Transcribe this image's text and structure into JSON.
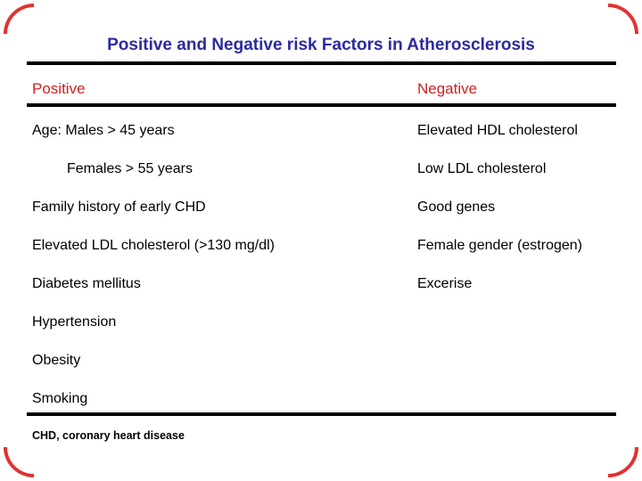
{
  "slide": {
    "title": "Positive and Negative risk Factors in Atherosclerosis",
    "columns": {
      "positive": {
        "header": "Positive",
        "items": [
          "Age: Males > 45 years",
          "Females > 55 years",
          "Family history of early CHD",
          "Elevated LDL cholesterol (>130 mg/dl)",
          "Diabetes mellitus",
          "Hypertension",
          "Obesity",
          "Smoking"
        ]
      },
      "negative": {
        "header": "Negative",
        "items": [
          "Elevated HDL cholesterol",
          "Low LDL cholesterol",
          "Good genes",
          "Female gender (estrogen)",
          "Excerise"
        ]
      }
    },
    "footnote": "CHD, coronary heart disease",
    "colors": {
      "title_blue": "#2b2b9e",
      "header_red": "#cc2222",
      "body_black": "#000000",
      "rule_black": "#000000",
      "corner_red": "#e03333"
    }
  }
}
